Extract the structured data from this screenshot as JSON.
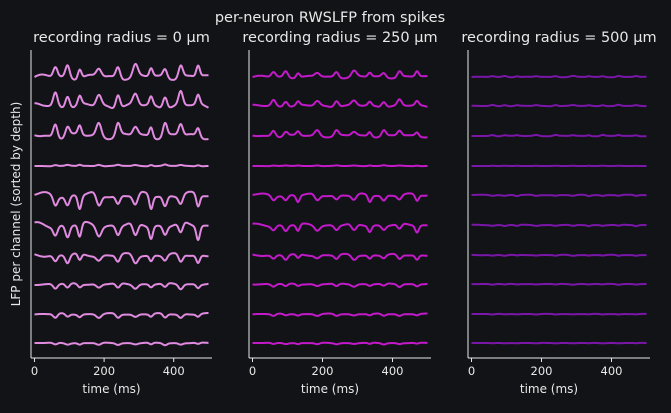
{
  "figure": {
    "suptitle": "per-neuron RWSLFP from spikes",
    "ylabel": "LFP per channel (sorted by depth)",
    "background": "#111316",
    "axis_color": "#e8e8e8"
  },
  "chart_data": [
    {
      "type": "line",
      "title": "recording radius = 0 μm",
      "xlabel": "time (ms)",
      "xlim": [
        -10,
        510
      ],
      "xticks": [
        "0",
        "200",
        "400"
      ],
      "xtick_values": [
        0,
        200,
        400
      ],
      "color": "#e08ae0",
      "n_channels": 10,
      "channel_amplitudes": [
        0.9,
        1.0,
        1.0,
        0.1,
        1.0,
        1.0,
        0.6,
        0.35,
        0.3,
        0.15
      ],
      "channel_polarity": [
        1,
        1,
        1,
        1,
        -1,
        -1,
        -1,
        -1,
        -1,
        -1
      ]
    },
    {
      "type": "line",
      "title": "recording radius = 250 μm",
      "xlabel": "time (ms)",
      "xlim": [
        -10,
        510
      ],
      "xticks": [
        "0",
        "200",
        "400"
      ],
      "xtick_values": [
        0,
        200,
        400
      ],
      "color": "#c21ac9",
      "n_channels": 10,
      "channel_amplitudes": [
        0.45,
        0.45,
        0.45,
        0.05,
        0.5,
        0.5,
        0.35,
        0.2,
        0.15,
        0.1
      ],
      "channel_polarity": [
        1,
        1,
        1,
        1,
        -1,
        -1,
        -1,
        -1,
        -1,
        -1
      ]
    },
    {
      "type": "line",
      "title": "recording radius = 500 μm",
      "xlabel": "time (ms)",
      "xlim": [
        -10,
        510
      ],
      "xticks": [
        "0",
        "200",
        "400"
      ],
      "xtick_values": [
        0,
        200,
        400
      ],
      "color": "#7a16a8",
      "n_channels": 10,
      "channel_amplitudes": [
        0.08,
        0.08,
        0.08,
        0.02,
        0.08,
        0.08,
        0.06,
        0.05,
        0.04,
        0.03
      ],
      "channel_polarity": [
        1,
        1,
        1,
        1,
        -1,
        -1,
        -1,
        -1,
        -1,
        -1
      ]
    }
  ]
}
